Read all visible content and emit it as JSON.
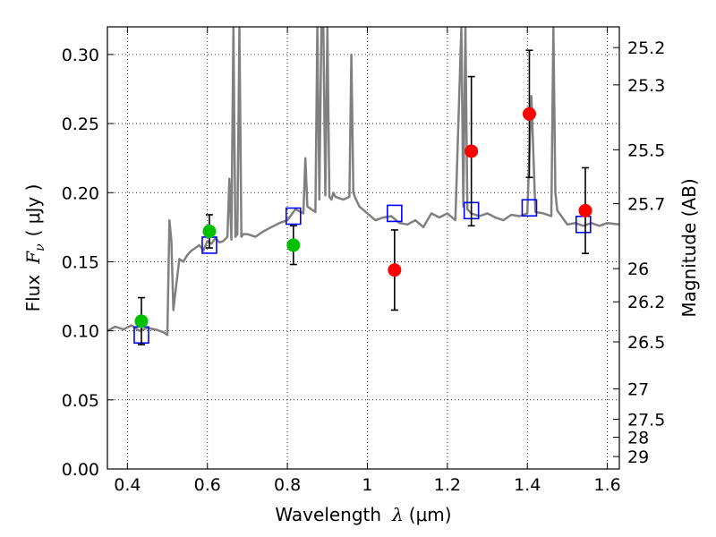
{
  "chart_data": {
    "type": "scatter",
    "xlabel": {
      "text": "Wavelength",
      "symbol": "λ",
      "unit": "(μm)"
    },
    "ylabel": {
      "text": "Flux",
      "symbol": "F",
      "subscript": "ν",
      "unit": "( μJy )"
    },
    "y2label": "Magnitude (AB)",
    "xlim": [
      0.35,
      1.63
    ],
    "ylim": [
      0.0,
      0.32
    ],
    "grid": true,
    "x_ticks": [
      0.4,
      0.6,
      0.8,
      1.0,
      1.2,
      1.4,
      1.6
    ],
    "x_tick_labels": [
      "0.4",
      "0.6",
      "0.8",
      "1",
      "1.2",
      "1.4",
      "1.6"
    ],
    "y_ticks": [
      0.0,
      0.05,
      0.1,
      0.15,
      0.2,
      0.25,
      0.3
    ],
    "y_tick_labels": [
      "0.00",
      "0.05",
      "0.10",
      "0.15",
      "0.20",
      "0.25",
      "0.30"
    ],
    "y2_ticks": [
      {
        "label": "25.2",
        "flux": 0.305
      },
      {
        "label": "25.3",
        "flux": 0.278
      },
      {
        "label": "25.5",
        "flux": 0.231
      },
      {
        "label": "25.7",
        "flux": 0.192
      },
      {
        "label": "26",
        "flux": 0.145
      },
      {
        "label": "26.2",
        "flux": 0.121
      },
      {
        "label": "26.5",
        "flux": 0.092
      },
      {
        "label": "27",
        "flux": 0.058
      },
      {
        "label": "27.5",
        "flux": 0.036
      },
      {
        "label": "28",
        "flux": 0.023
      },
      {
        "label": "29",
        "flux": 0.009
      }
    ],
    "series": [
      {
        "marker": "line",
        "color": "#808080",
        "x": [
          0.35,
          0.37,
          0.39,
          0.41,
          0.43,
          0.45,
          0.47,
          0.49,
          0.5,
          0.505,
          0.51,
          0.515,
          0.52,
          0.53,
          0.54,
          0.55,
          0.56,
          0.57,
          0.58,
          0.59,
          0.6,
          0.61,
          0.62,
          0.63,
          0.64,
          0.65,
          0.655,
          0.66,
          0.665,
          0.67,
          0.675,
          0.68,
          0.685,
          0.69,
          0.7,
          0.72,
          0.74,
          0.76,
          0.78,
          0.8,
          0.82,
          0.84,
          0.845,
          0.85,
          0.86,
          0.87,
          0.875,
          0.88,
          0.885,
          0.89,
          0.895,
          0.9,
          0.905,
          0.91,
          0.915,
          0.92,
          0.94,
          0.955,
          0.96,
          0.965,
          0.97,
          0.98,
          1.0,
          1.02,
          1.04,
          1.06,
          1.08,
          1.1,
          1.12,
          1.14,
          1.16,
          1.18,
          1.2,
          1.22,
          1.235,
          1.24,
          1.245,
          1.25,
          1.26,
          1.28,
          1.3,
          1.32,
          1.34,
          1.36,
          1.38,
          1.4,
          1.41,
          1.42,
          1.44,
          1.46,
          1.465,
          1.47,
          1.475,
          1.48,
          1.5,
          1.52,
          1.54,
          1.56,
          1.58,
          1.6,
          1.63
        ],
        "y": [
          0.1,
          0.103,
          0.101,
          0.104,
          0.1,
          0.102,
          0.101,
          0.099,
          0.097,
          0.18,
          0.165,
          0.115,
          0.128,
          0.152,
          0.15,
          0.155,
          0.158,
          0.16,
          0.162,
          0.158,
          0.165,
          0.163,
          0.167,
          0.164,
          0.165,
          0.168,
          0.21,
          0.166,
          0.32,
          0.168,
          0.17,
          0.32,
          0.168,
          0.17,
          0.17,
          0.168,
          0.172,
          0.175,
          0.178,
          0.18,
          0.188,
          0.185,
          0.225,
          0.19,
          0.188,
          0.186,
          0.32,
          0.195,
          0.32,
          0.32,
          0.198,
          0.32,
          0.197,
          0.195,
          0.2,
          0.197,
          0.195,
          0.197,
          0.3,
          0.2,
          0.196,
          0.19,
          0.185,
          0.18,
          0.182,
          0.183,
          0.178,
          0.177,
          0.18,
          0.175,
          0.185,
          0.182,
          0.185,
          0.18,
          0.32,
          0.19,
          0.32,
          0.188,
          0.185,
          0.183,
          0.185,
          0.182,
          0.18,
          0.184,
          0.183,
          0.185,
          0.27,
          0.186,
          0.185,
          0.183,
          0.32,
          0.2,
          0.187,
          0.185,
          0.177,
          0.178,
          0.176,
          0.178,
          0.176,
          0.178,
          0.177
        ]
      },
      {
        "marker": "square",
        "color": "#0000ff",
        "x": [
          0.435,
          0.605,
          0.815,
          1.068,
          1.26,
          1.405,
          1.54
        ],
        "y": [
          0.097,
          0.162,
          0.183,
          0.185,
          0.187,
          0.189,
          0.177
        ]
      },
      {
        "marker": "circle",
        "color": "#00c000",
        "x": [
          0.435,
          0.605,
          0.815
        ],
        "y": [
          0.107,
          0.172,
          0.162
        ],
        "yerr": [
          0.017,
          0.012,
          0.014
        ]
      },
      {
        "marker": "circle",
        "color": "#ff0000",
        "x": [
          1.068,
          1.26,
          1.405,
          1.545
        ],
        "y": [
          0.144,
          0.23,
          0.257,
          0.187
        ],
        "yerr": [
          0.029,
          0.054,
          0.046,
          0.031
        ]
      }
    ]
  }
}
